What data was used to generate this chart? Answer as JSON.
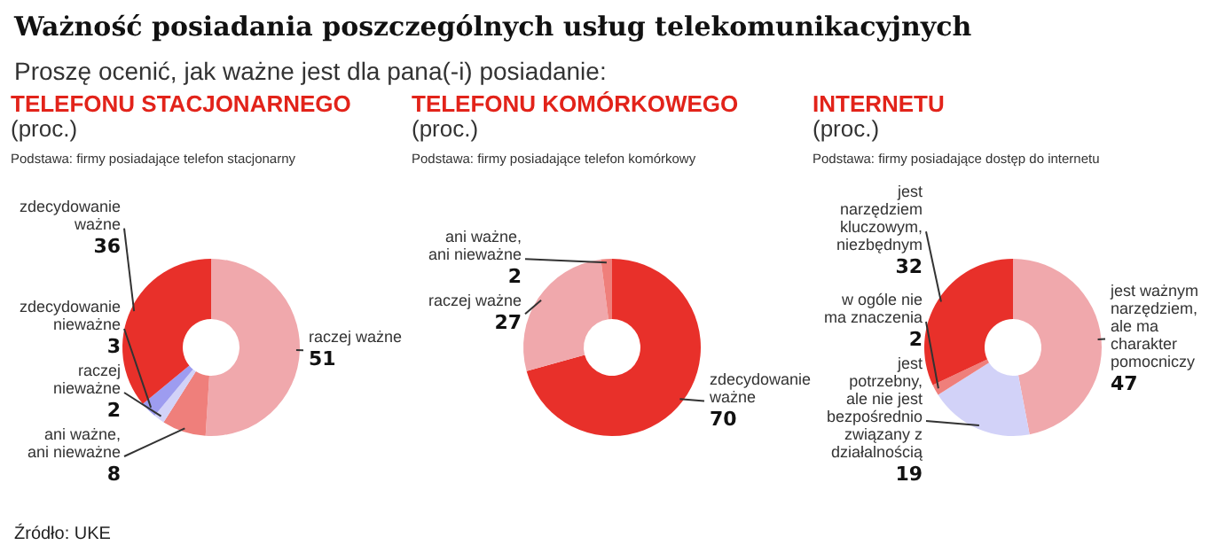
{
  "chart_data": [
    {
      "type": "other",
      "title": "Ważność posiadania poszczególnych usług telekomunikacyjnych",
      "subtitle": "Proszę ocenić, jak ważne jest dla pana(-i) posiadanie:",
      "annotations": [
        "Źródło: UKE"
      ]
    },
    {
      "type": "donut",
      "title": "TELEFONU STACJONARNEGO",
      "subtitle": "(proc.)",
      "annotations": [
        "Podstawa: firmy posiadające telefon stacjonarny"
      ],
      "categories": [
        "raczej ważne",
        "ani ważne, ani nieważne",
        "raczej nieważne",
        "zdecydowanie nieważne",
        "zdecydowanie ważne"
      ],
      "values": [
        51,
        8,
        2,
        3,
        36
      ],
      "colors": [
        "#f0a8ac",
        "#ef7f7b",
        "#d2d2f8",
        "#9d9cf0",
        "#e8302a"
      ],
      "data_labels": true
    },
    {
      "type": "donut",
      "title": "TELEFONU KOMÓRKOWEGO",
      "subtitle": "(proc.)",
      "annotations": [
        "Podstawa: firmy posiadające telefon komórkowy"
      ],
      "categories": [
        "zdecydowanie ważne",
        "raczej ważne",
        "ani ważne, ani nieważne"
      ],
      "values": [
        70,
        27,
        2
      ],
      "colors": [
        "#e8302a",
        "#f0a8ac",
        "#ef7f7b"
      ],
      "data_labels": true
    },
    {
      "type": "donut",
      "title": "INTERNETU",
      "subtitle": "(proc.)",
      "annotations": [
        "Podstawa: firmy posiadające dostęp do internetu"
      ],
      "categories": [
        "jest ważnym narzędziem, ale ma charakter pomocniczy",
        "jest potrzebny, ale nie jest bezpośrednio związany z działalnością",
        "w ogóle nie ma znaczenia",
        "jest narzędziem kluczowym, niezbędnym"
      ],
      "values": [
        47,
        19,
        2,
        32
      ],
      "colors": [
        "#f0a8ac",
        "#d2d2f8",
        "#ef7f7b",
        "#e8302a"
      ],
      "data_labels": true
    }
  ]
}
